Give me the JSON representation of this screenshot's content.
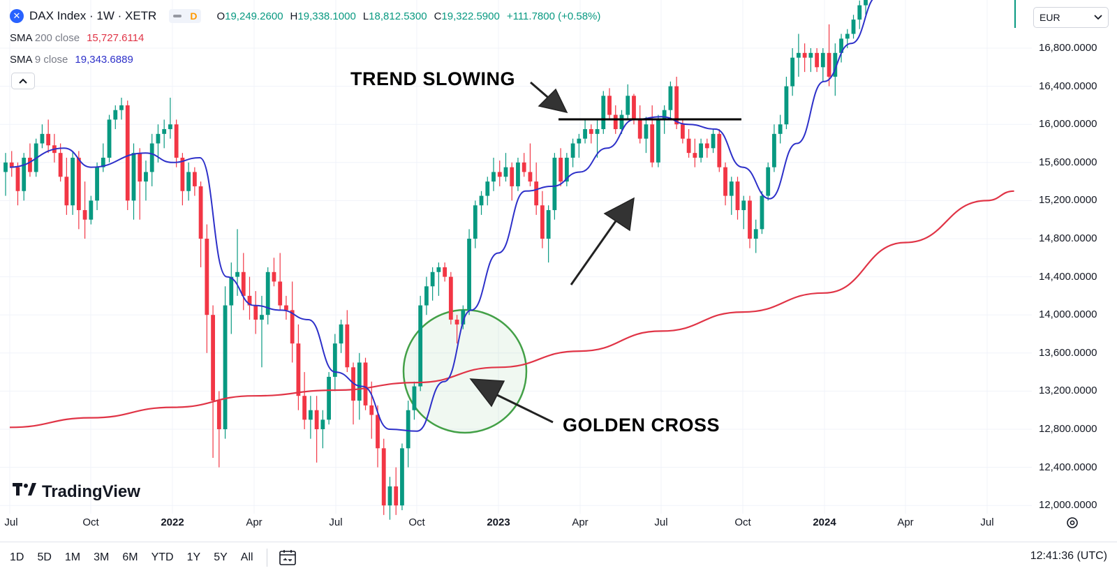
{
  "header": {
    "symbol_icon": "x-cross-icon",
    "title": "DAX Index · 1W · XETR",
    "pill_indicator": "D",
    "ohlc": {
      "o_key": "O",
      "o": "19,249.2600",
      "h_key": "H",
      "h": "19,338.1000",
      "l_key": "L",
      "l": "18,812.5300",
      "c_key": "C",
      "c": "19,322.5900",
      "change": "+111.7800 (+0.58%)"
    }
  },
  "indicators": [
    {
      "name": "SMA",
      "param": "200 close",
      "value": "15,727.6114",
      "color": "#e03446"
    },
    {
      "name": "SMA",
      "param": "9 close",
      "value": "19,343.6889",
      "color": "#2d30c9"
    }
  ],
  "currency": {
    "label": "EUR",
    "icon": "chevron-down-icon"
  },
  "price_axis": [
    "16,800.0000",
    "16,400.0000",
    "16,000.0000",
    "15,600.0000",
    "15,200.0000",
    "14,800.0000",
    "14,400.0000",
    "14,000.0000",
    "13,600.0000",
    "13,200.0000",
    "12,800.0000",
    "12,400.0000",
    "12,000.0000"
  ],
  "time_axis": [
    {
      "label": "Jul",
      "bold": false
    },
    {
      "label": "Oct",
      "bold": false
    },
    {
      "label": "2022",
      "bold": true
    },
    {
      "label": "Apr",
      "bold": false
    },
    {
      "label": "Jul",
      "bold": false
    },
    {
      "label": "Oct",
      "bold": false
    },
    {
      "label": "2023",
      "bold": true
    },
    {
      "label": "Apr",
      "bold": false
    },
    {
      "label": "Jul",
      "bold": false
    },
    {
      "label": "Oct",
      "bold": false
    },
    {
      "label": "2024",
      "bold": true
    },
    {
      "label": "Apr",
      "bold": false
    },
    {
      "label": "Jul",
      "bold": false
    }
  ],
  "annotations": {
    "trend": "TREND SLOWING",
    "cross": "GOLDEN CROSS"
  },
  "logo": {
    "text": "TradingView",
    "icon": "tradingview-logo-icon"
  },
  "toolbar": {
    "ranges": [
      "1D",
      "5D",
      "1M",
      "3M",
      "6M",
      "YTD",
      "1Y",
      "5Y",
      "All"
    ],
    "date_range_icon": "calendar-range-icon",
    "clock": "12:41:36 (UTC)"
  },
  "colors": {
    "up": "#089981",
    "down": "#f23645",
    "sma200": "#e03446",
    "sma9": "#2d30c9",
    "circle": "#43a047"
  },
  "chart_data": {
    "type": "candlestick",
    "title": "DAX Index · 1W · XETR",
    "y_axis_unit": "EUR",
    "ylim": [
      11850,
      17400
    ],
    "x_range": [
      "2021-07",
      "2024-08"
    ],
    "grid": true,
    "candles": [
      [
        15500,
        15700,
        15250,
        15600
      ],
      [
        15600,
        15720,
        15450,
        15550
      ],
      [
        15550,
        15600,
        15150,
        15300
      ],
      [
        15300,
        15700,
        15200,
        15650
      ],
      [
        15650,
        15800,
        15450,
        15500
      ],
      [
        15500,
        15850,
        15450,
        15800
      ],
      [
        15800,
        16000,
        15750,
        15900
      ],
      [
        15900,
        16050,
        15700,
        15780
      ],
      [
        15780,
        15900,
        15600,
        15700
      ],
      [
        15700,
        15800,
        15400,
        15450
      ],
      [
        15450,
        15650,
        15050,
        15150
      ],
      [
        15150,
        15720,
        15050,
        15650
      ],
      [
        15650,
        15720,
        14900,
        15100
      ],
      [
        15100,
        15400,
        14800,
        15000
      ],
      [
        15000,
        15250,
        14950,
        15200
      ],
      [
        15200,
        15600,
        15100,
        15550
      ],
      [
        15550,
        15800,
        15500,
        15650
      ],
      [
        15650,
        16100,
        15600,
        16050
      ],
      [
        16050,
        16200,
        15950,
        16150
      ],
      [
        16150,
        16280,
        16050,
        16200
      ],
      [
        16200,
        16250,
        15100,
        15200
      ],
      [
        15200,
        15800,
        15000,
        15700
      ],
      [
        15700,
        15750,
        15000,
        15400
      ],
      [
        15400,
        15620,
        15200,
        15500
      ],
      [
        15500,
        15900,
        15350,
        15800
      ],
      [
        15800,
        16000,
        15600,
        15900
      ],
      [
        15900,
        16050,
        15750,
        15950
      ],
      [
        15950,
        16280,
        15850,
        16000
      ],
      [
        16000,
        16050,
        15550,
        15650
      ],
      [
        15650,
        15700,
        15150,
        15300
      ],
      [
        15300,
        15600,
        15200,
        15500
      ],
      [
        15500,
        15550,
        15250,
        15350
      ],
      [
        15350,
        15400,
        14500,
        14800
      ],
      [
        14800,
        14950,
        13600,
        14000
      ],
      [
        14000,
        14100,
        12500,
        13100
      ],
      [
        13100,
        13200,
        12400,
        12800
      ],
      [
        12800,
        14300,
        12700,
        14100
      ],
      [
        14100,
        14550,
        13800,
        14400
      ],
      [
        14400,
        14900,
        14200,
        14450
      ],
      [
        14450,
        14650,
        14050,
        14200
      ],
      [
        14200,
        14400,
        13950,
        14100
      ],
      [
        14100,
        14250,
        13800,
        13950
      ],
      [
        13950,
        14200,
        13450,
        14000
      ],
      [
        14000,
        14500,
        13900,
        14450
      ],
      [
        14450,
        14600,
        14300,
        14350
      ],
      [
        14350,
        14650,
        14050,
        14100
      ],
      [
        14100,
        14200,
        13950,
        14050
      ],
      [
        14050,
        14350,
        13500,
        13700
      ],
      [
        13700,
        13900,
        13000,
        13150
      ],
      [
        13150,
        13400,
        12800,
        12900
      ],
      [
        12900,
        13150,
        12700,
        13000
      ],
      [
        13000,
        13150,
        12450,
        12800
      ],
      [
        12800,
        13000,
        12600,
        12900
      ],
      [
        12900,
        13400,
        12850,
        13350
      ],
      [
        13350,
        13800,
        13200,
        13700
      ],
      [
        13700,
        13950,
        13600,
        13900
      ],
      [
        13900,
        14050,
        13400,
        13450
      ],
      [
        13450,
        13500,
        12850,
        13100
      ],
      [
        13100,
        13600,
        12900,
        13500
      ],
      [
        13500,
        13550,
        13000,
        13050
      ],
      [
        13050,
        13300,
        12700,
        12950
      ],
      [
        12950,
        13050,
        12400,
        12600
      ],
      [
        12600,
        12700,
        11900,
        12000
      ],
      [
        12000,
        12300,
        11850,
        12200
      ],
      [
        12200,
        12400,
        11900,
        12000
      ],
      [
        12000,
        12650,
        11950,
        12600
      ],
      [
        12600,
        13100,
        12400,
        13000
      ],
      [
        13000,
        13300,
        12900,
        13250
      ],
      [
        13250,
        14200,
        13200,
        14100
      ],
      [
        14100,
        14400,
        14000,
        14300
      ],
      [
        14300,
        14500,
        14150,
        14450
      ],
      [
        14450,
        14550,
        14200,
        14500
      ],
      [
        14500,
        14550,
        14350,
        14400
      ],
      [
        14400,
        14450,
        13900,
        13950
      ],
      [
        13950,
        14000,
        13700,
        13900
      ],
      [
        13900,
        14100,
        13850,
        14050
      ],
      [
        14050,
        14900,
        14000,
        14800
      ],
      [
        14800,
        15200,
        14700,
        15150
      ],
      [
        15150,
        15300,
        15050,
        15250
      ],
      [
        15250,
        15450,
        15150,
        15400
      ],
      [
        15400,
        15650,
        15300,
        15500
      ],
      [
        15500,
        15620,
        15350,
        15450
      ],
      [
        15450,
        15700,
        15400,
        15550
      ],
      [
        15550,
        15600,
        15200,
        15350
      ],
      [
        15350,
        15650,
        15300,
        15600
      ],
      [
        15600,
        15700,
        15450,
        15500
      ],
      [
        15500,
        15800,
        15350,
        15400
      ],
      [
        15400,
        15600,
        15050,
        15150
      ],
      [
        15150,
        15300,
        14700,
        14800
      ],
      [
        14800,
        15150,
        14550,
        15100
      ],
      [
        15100,
        15700,
        15000,
        15650
      ],
      [
        15650,
        15750,
        15350,
        15400
      ],
      [
        15400,
        15700,
        15350,
        15650
      ],
      [
        15650,
        15850,
        15550,
        15800
      ],
      [
        15800,
        15900,
        15650,
        15850
      ],
      [
        15850,
        16050,
        15800,
        15950
      ],
      [
        15950,
        16000,
        15800,
        15900
      ],
      [
        15900,
        16050,
        15650,
        15950
      ],
      [
        15950,
        16350,
        15900,
        16300
      ],
      [
        16300,
        16380,
        16050,
        16100
      ],
      [
        16100,
        16200,
        15900,
        15950
      ],
      [
        15950,
        16150,
        15900,
        16100
      ],
      [
        16100,
        16420,
        16050,
        16300
      ],
      [
        16300,
        16320,
        16000,
        16050
      ],
      [
        16050,
        16200,
        15800,
        15850
      ],
      [
        15850,
        16080,
        15700,
        16000
      ],
      [
        16000,
        16200,
        15550,
        15600
      ],
      [
        15600,
        16100,
        15550,
        16050
      ],
      [
        16050,
        16200,
        15900,
        16150
      ],
      [
        16150,
        16450,
        16050,
        16400
      ],
      [
        16400,
        16500,
        15950,
        16000
      ],
      [
        16000,
        16050,
        15800,
        15850
      ],
      [
        15850,
        15950,
        15650,
        15700
      ],
      [
        15700,
        15850,
        15550,
        15650
      ],
      [
        15650,
        15850,
        15600,
        15800
      ],
      [
        15800,
        15850,
        15650,
        15750
      ],
      [
        15750,
        15950,
        15700,
        15900
      ],
      [
        15900,
        15950,
        15500,
        15550
      ],
      [
        15550,
        15600,
        15150,
        15250
      ],
      [
        15250,
        15450,
        15050,
        15400
      ],
      [
        15400,
        15450,
        15000,
        15100
      ],
      [
        15100,
        15250,
        14900,
        15200
      ],
      [
        15200,
        15250,
        14700,
        14800
      ],
      [
        14800,
        15000,
        14650,
        14900
      ],
      [
        14900,
        15300,
        14850,
        15250
      ],
      [
        15250,
        15600,
        15200,
        15550
      ],
      [
        15550,
        16000,
        15500,
        15900
      ],
      [
        15900,
        16100,
        15800,
        16000
      ],
      [
        16000,
        16500,
        15950,
        16400
      ],
      [
        16400,
        16800,
        16300,
        16700
      ],
      [
        16700,
        16950,
        16500,
        16750
      ],
      [
        16750,
        16850,
        16550,
        16700
      ],
      [
        16700,
        16800,
        16550,
        16750
      ],
      [
        16750,
        16800,
        16550,
        16600
      ],
      [
        16600,
        16800,
        16450,
        16750
      ],
      [
        16750,
        17050,
        16400,
        16500
      ],
      [
        16500,
        16850,
        16300,
        16750
      ],
      [
        16750,
        16950,
        16650,
        16900
      ],
      [
        16900,
        17000,
        16800,
        16950
      ],
      [
        16950,
        17150,
        16900,
        17100
      ],
      [
        17100,
        17300,
        17000,
        17250
      ],
      [
        17250,
        17450,
        17150,
        17400
      ]
    ],
    "series": [
      {
        "name": "SMA 200 close",
        "color": "#e03446",
        "x": [
          "2021-07",
          "2021-10",
          "2022-01",
          "2022-04",
          "2022-07",
          "2022-10",
          "2023-01",
          "2023-04",
          "2023-07",
          "2023-10",
          "2024-01",
          "2024-04",
          "2024-07",
          "2024-08"
        ],
        "y": [
          12820,
          12920,
          13030,
          13150,
          13210,
          13290,
          13450,
          13620,
          13830,
          14030,
          14230,
          14760,
          15200,
          15300
        ]
      },
      {
        "name": "SMA 9 close",
        "color": "#2d30c9",
        "x": [
          "2021-07",
          "2021-09",
          "2021-10",
          "2021-12",
          "2022-01",
          "2022-02",
          "2022-03",
          "2022-04",
          "2022-05",
          "2022-06",
          "2022-07",
          "2022-08",
          "2022-09",
          "2022-10",
          "2022-11",
          "2022-12",
          "2023-01",
          "2023-02",
          "2023-03",
          "2023-04",
          "2023-05",
          "2023-06",
          "2023-07",
          "2023-08",
          "2023-09",
          "2023-10",
          "2023-11",
          "2023-12",
          "2024-01",
          "2024-02",
          "2024-03"
        ],
        "y": [
          15550,
          15750,
          15550,
          15700,
          15600,
          15650,
          14400,
          14100,
          14050,
          13950,
          13400,
          13250,
          12800,
          12780,
          13300,
          14050,
          14650,
          15300,
          15350,
          15500,
          15750,
          16050,
          16080,
          16000,
          15950,
          15550,
          15220,
          15800,
          16450,
          16850,
          17350
        ]
      }
    ]
  }
}
